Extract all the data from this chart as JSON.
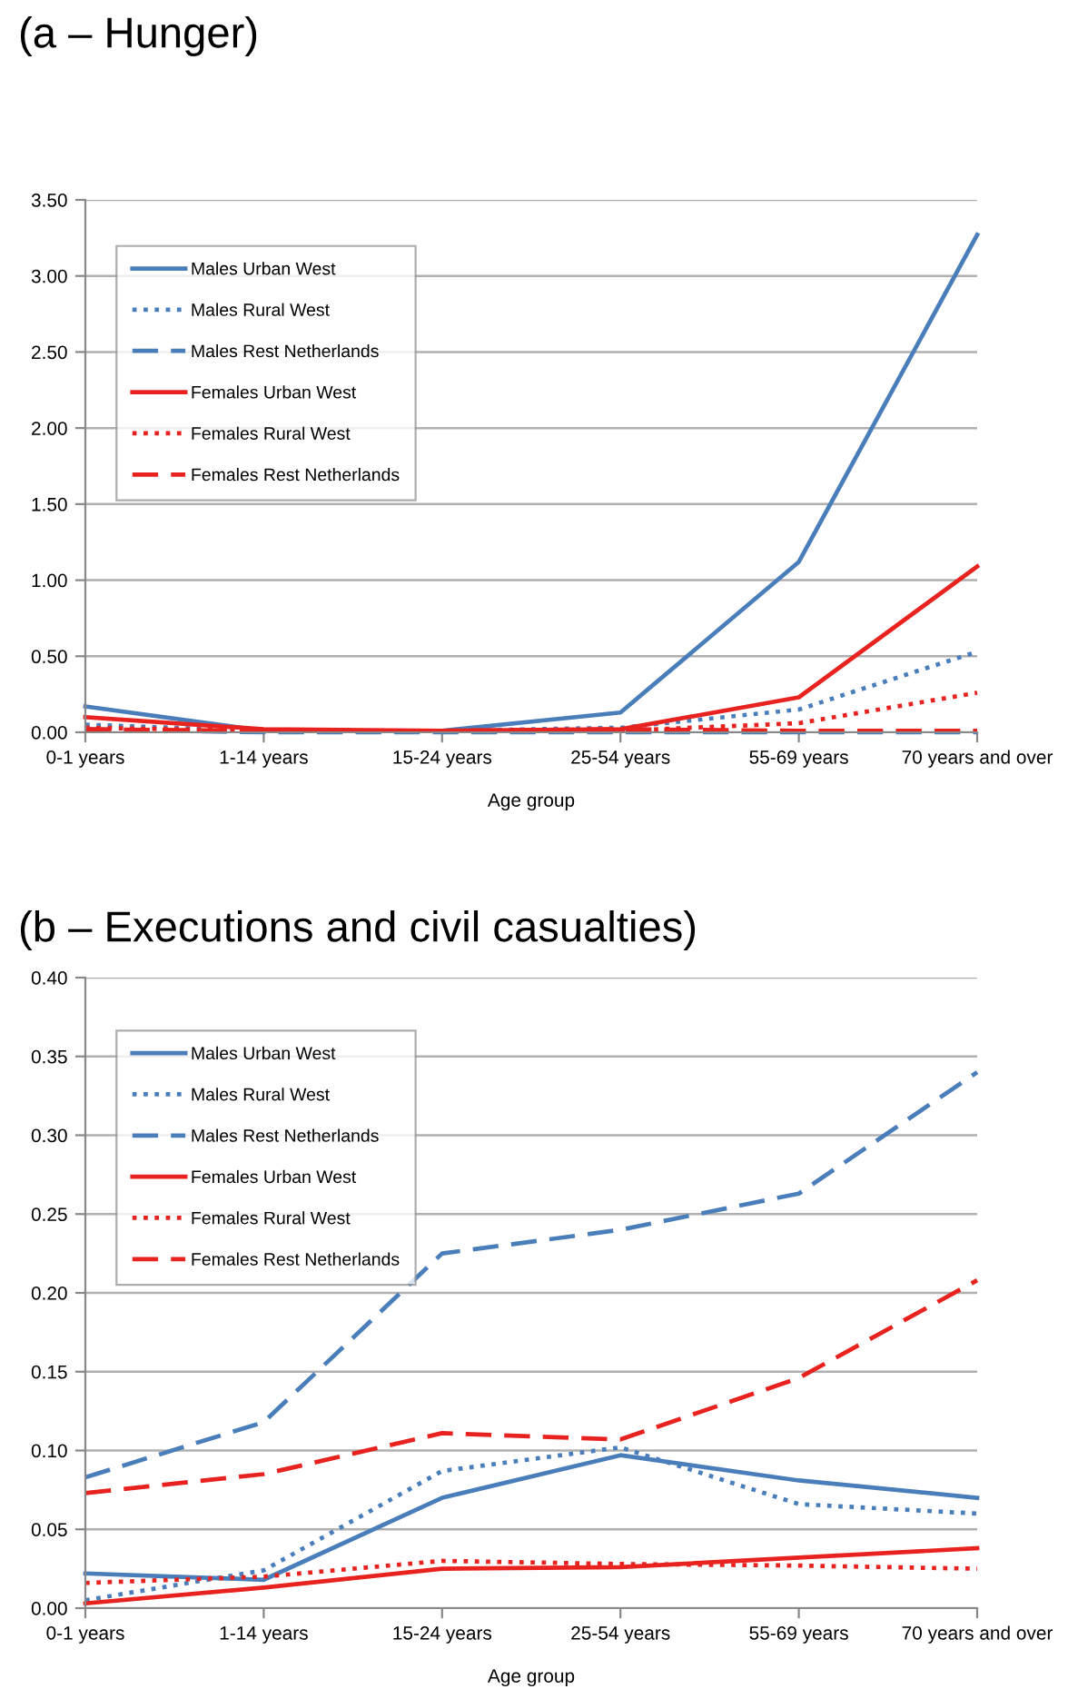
{
  "chart_data": [
    {
      "type": "line",
      "title": "(a – Hunger)",
      "xlabel": "Age group",
      "categories": [
        "0-1 years",
        "1-14 years",
        "15-24 years",
        "25-54 years",
        "55-69 years",
        "70 years and over"
      ],
      "ylim": [
        0,
        3.5
      ],
      "yticks": [
        {
          "value": 0,
          "label": "0.00"
        },
        {
          "value": 0.5,
          "label": "0.50"
        },
        {
          "value": 1,
          "label": "1.00"
        },
        {
          "value": 1.5,
          "label": "1.50"
        },
        {
          "value": 2,
          "label": "2.00"
        },
        {
          "value": 2.5,
          "label": "2.50"
        },
        {
          "value": 3,
          "label": "3.00"
        },
        {
          "value": 3.5,
          "label": "3.50"
        }
      ],
      "grid": "y",
      "legend": "top left",
      "marker": "none",
      "series": [
        {
          "name": "Males Urban West",
          "color": "#4a7ebb",
          "line_style": "solid",
          "values": [
            0.17,
            0.01,
            0.01,
            0.13,
            1.12,
            3.27
          ]
        },
        {
          "name": "Males Rural West",
          "color": "#4a7ebb",
          "line_style": "dotted",
          "values": [
            0.05,
            0.01,
            0.01,
            0.03,
            0.15,
            0.53
          ]
        },
        {
          "name": "Males Rest Netherlands",
          "color": "#4a7ebb",
          "line_style": "dashed",
          "values": [
            0.02,
            0.0,
            0.0,
            0.0,
            0.0,
            0.0
          ]
        },
        {
          "name": "Females Urban West",
          "color": "#e8231f",
          "line_style": "solid",
          "values": [
            0.1,
            0.02,
            0.01,
            0.02,
            0.23,
            1.09
          ]
        },
        {
          "name": "Females Rural West",
          "color": "#e8231f",
          "line_style": "dotted",
          "values": [
            0.03,
            0.01,
            0.01,
            0.01,
            0.06,
            0.26
          ]
        },
        {
          "name": "Females Rest Netherlands",
          "color": "#e8231f",
          "line_style": "dashed",
          "values": [
            0.02,
            0.01,
            0.01,
            0.02,
            0.01,
            0.01
          ]
        }
      ]
    },
    {
      "type": "line",
      "title": "(b – Executions and civil casualties)",
      "xlabel": "Age group",
      "categories": [
        "0-1 years",
        "1-14 years",
        "15-24 years",
        "25-54 years",
        "55-69 years",
        "70 years and over"
      ],
      "ylim": [
        0,
        0.4
      ],
      "yticks": [
        {
          "value": 0,
          "label": "0.00"
        },
        {
          "value": 0.05,
          "label": "0.05"
        },
        {
          "value": 0.1,
          "label": "0.10"
        },
        {
          "value": 0.15,
          "label": "0.15"
        },
        {
          "value": 0.2,
          "label": "0.20"
        },
        {
          "value": 0.25,
          "label": "0.25"
        },
        {
          "value": 0.3,
          "label": "0.30"
        },
        {
          "value": 0.35,
          "label": "0.35"
        },
        {
          "value": 0.4,
          "label": "0.40"
        }
      ],
      "grid": "y",
      "legend": "top left",
      "marker": "none",
      "series": [
        {
          "name": "Males Urban West",
          "color": "#4a7ebb",
          "line_style": "solid",
          "values": [
            0.022,
            0.018,
            0.07,
            0.097,
            0.081,
            0.07
          ]
        },
        {
          "name": "Males Rural West",
          "color": "#4a7ebb",
          "line_style": "dotted",
          "values": [
            0.005,
            0.024,
            0.087,
            0.102,
            0.066,
            0.06
          ]
        },
        {
          "name": "Males Rest Netherlands",
          "color": "#4a7ebb",
          "line_style": "dashed",
          "values": [
            0.083,
            0.118,
            0.225,
            0.24,
            0.263,
            0.34
          ]
        },
        {
          "name": "Females Urban West",
          "color": "#e8231f",
          "line_style": "solid",
          "values": [
            0.003,
            0.013,
            0.025,
            0.026,
            0.032,
            0.038
          ]
        },
        {
          "name": "Females Rural West",
          "color": "#e8231f",
          "line_style": "dotted",
          "values": [
            0.016,
            0.02,
            0.03,
            0.028,
            0.027,
            0.025
          ]
        },
        {
          "name": "Females Rest Netherlands",
          "color": "#e8231f",
          "line_style": "dashed",
          "values": [
            0.073,
            0.085,
            0.111,
            0.107,
            0.146,
            0.208
          ]
        }
      ]
    }
  ]
}
